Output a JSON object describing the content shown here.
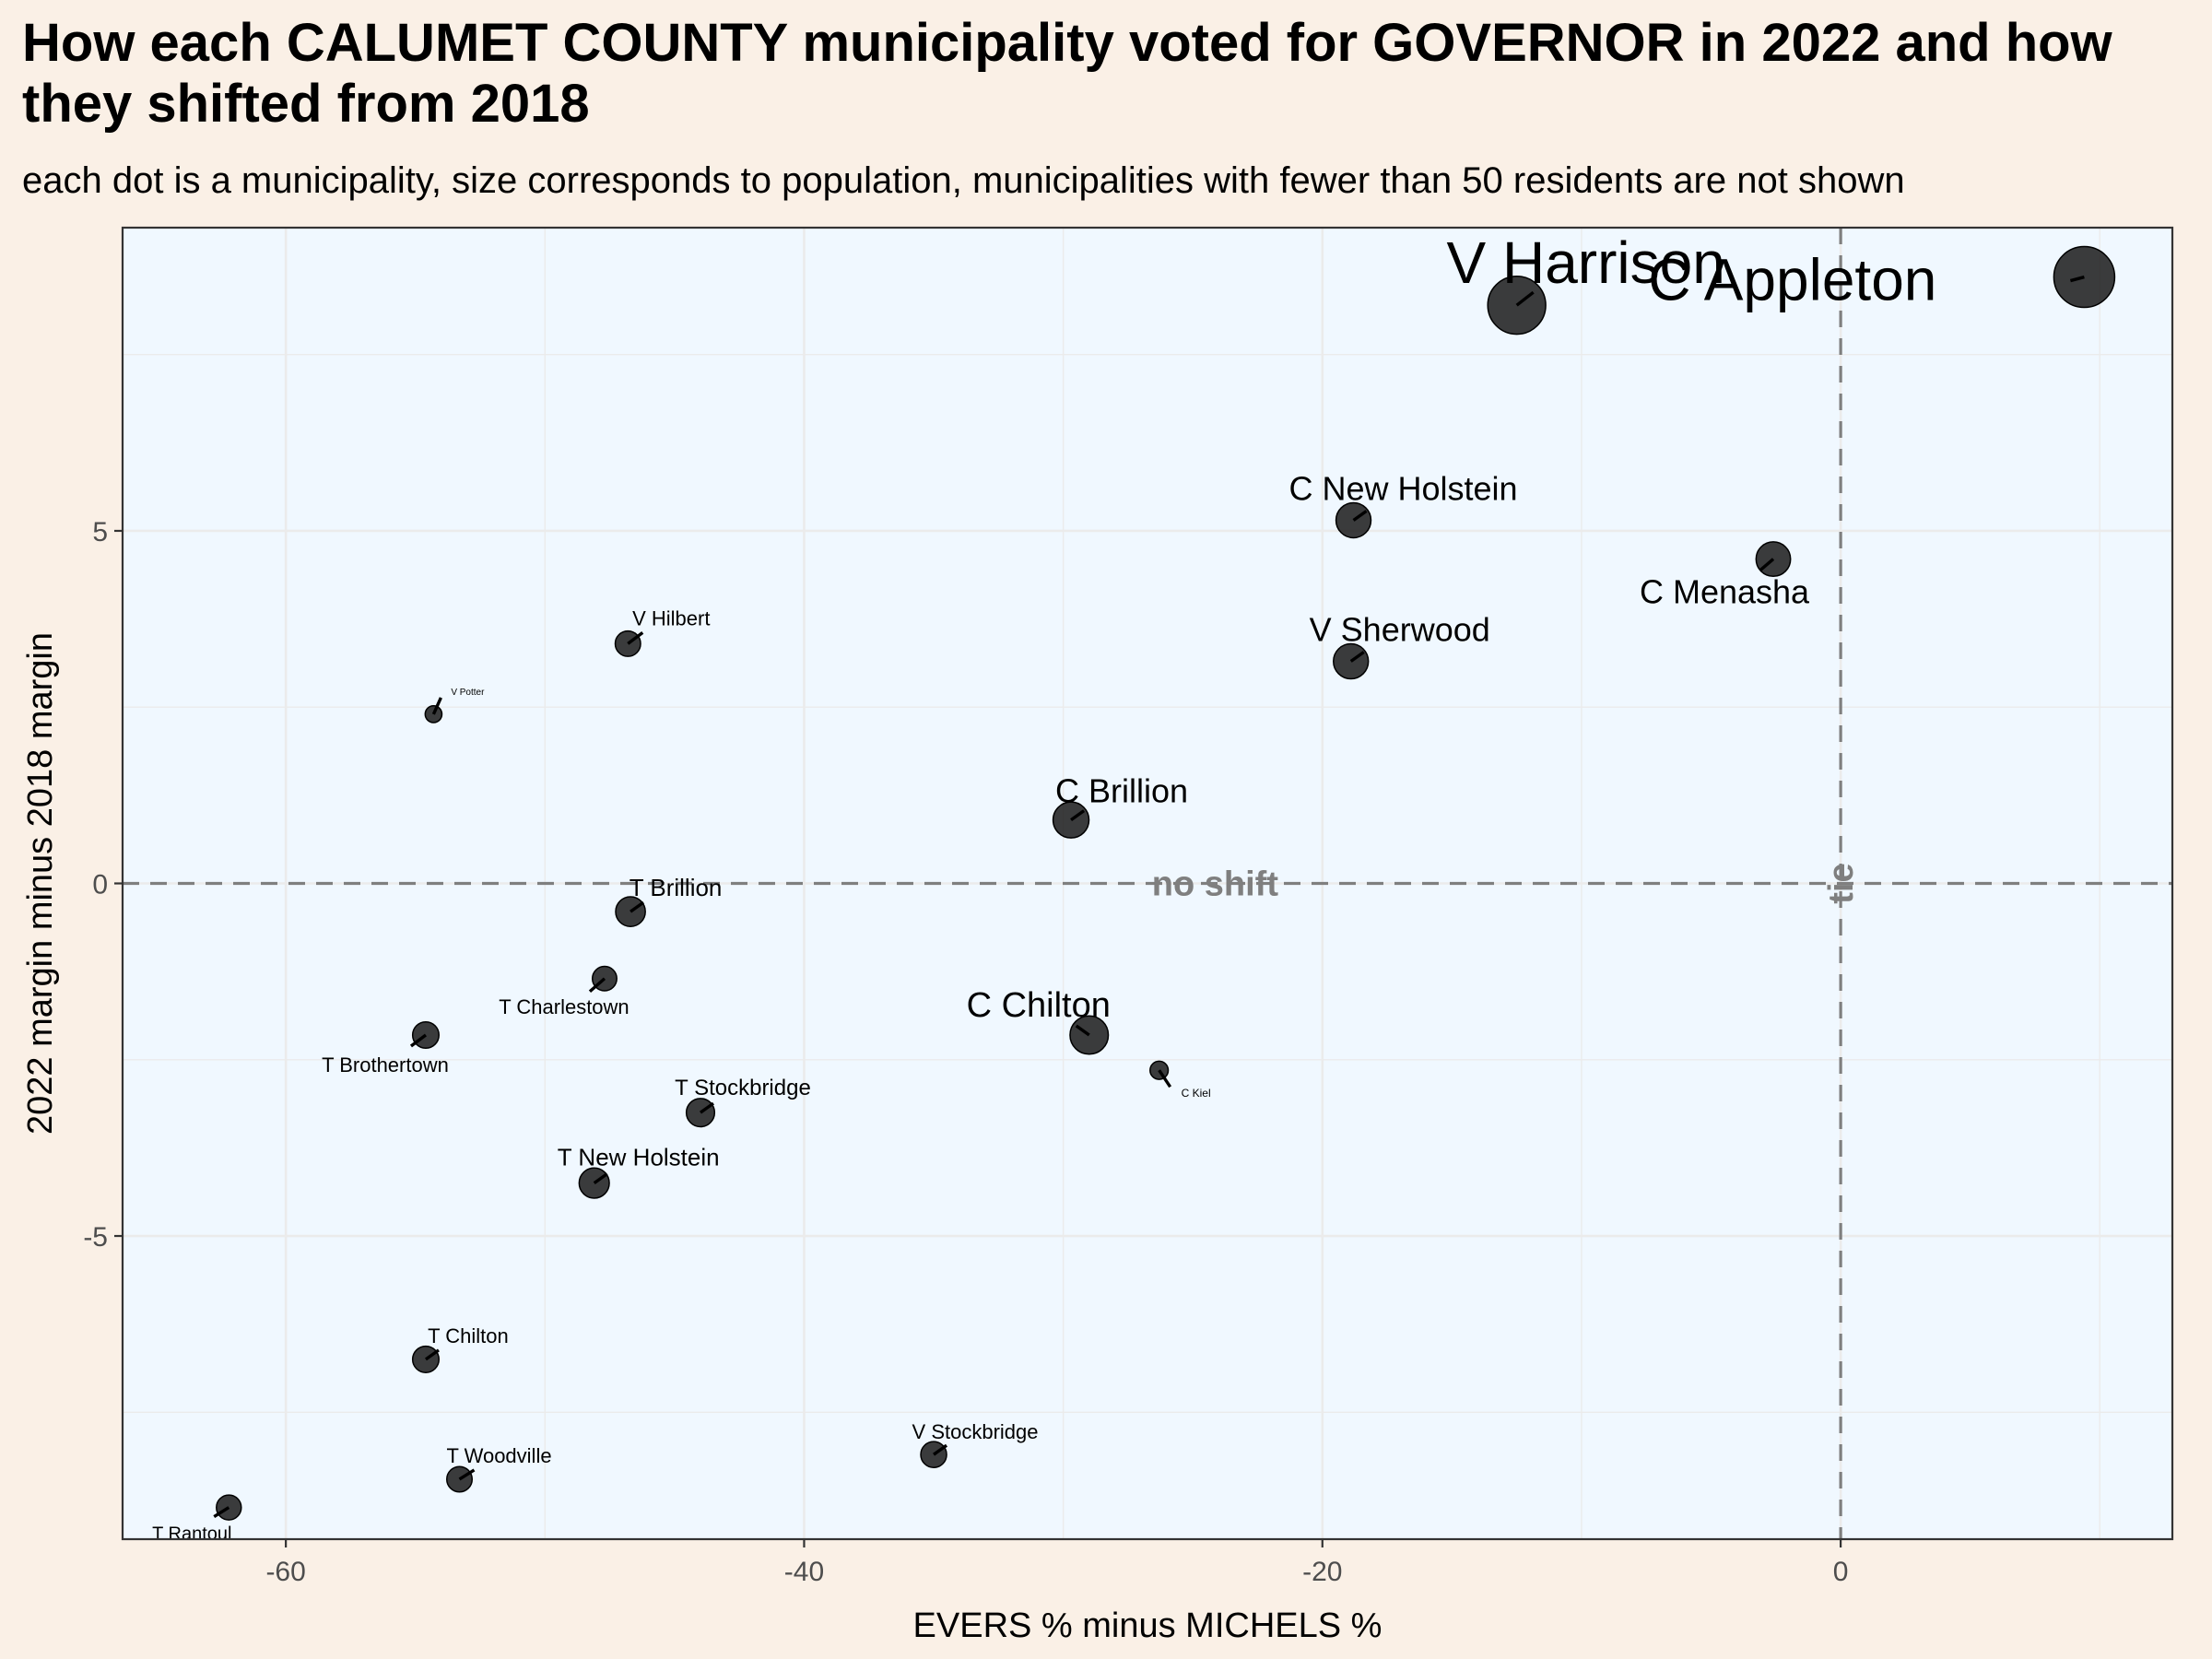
{
  "title": "How each CALUMET COUNTY municipality voted for GOVERNOR in 2022 and how they shifted from 2018",
  "subtitle": "each dot is a municipality, size corresponds to population, municipalities with fewer than 50 residents are not shown",
  "chart_data": {
    "type": "scatter",
    "xlabel": "EVERS % minus MICHELS %",
    "ylabel": "2022 margin minus 2018 margin",
    "xlim": [
      -66.3,
      12.8
    ],
    "ylim": [
      -9.3,
      9.3
    ],
    "x_ticks": [
      -60,
      -40,
      -20,
      0
    ],
    "x_tick_labels": [
      "-60",
      "-40",
      "-20",
      "0"
    ],
    "y_ticks": [
      -5,
      0,
      5
    ],
    "y_tick_labels": [
      "-5",
      "0",
      "5"
    ],
    "grid": true,
    "background": "#F0F8FF",
    "dot_color": "#1A1A1A",
    "reference_lines": [
      {
        "axis": "y",
        "value": 0,
        "label": "no shift"
      },
      {
        "axis": "x",
        "value": 0,
        "label": "tie"
      }
    ],
    "points": [
      {
        "name": "C Appleton",
        "x": 9.4,
        "y": 8.6,
        "size": 10
      },
      {
        "name": "V Harrison",
        "x": -12.5,
        "y": 8.2,
        "size": 9.4
      },
      {
        "name": "C New Holstein",
        "x": -18.8,
        "y": 5.15,
        "size": 4.6
      },
      {
        "name": "C Menasha",
        "x": -2.6,
        "y": 4.6,
        "size": 4.5
      },
      {
        "name": "V Sherwood",
        "x": -18.9,
        "y": 3.15,
        "size": 4.6
      },
      {
        "name": "V Hilbert",
        "x": -46.8,
        "y": 3.4,
        "size": 2.6
      },
      {
        "name": "V Potter",
        "x": -54.3,
        "y": 2.4,
        "size": 0.8
      },
      {
        "name": "C Brillion",
        "x": -29.7,
        "y": 0.9,
        "size": 4.8
      },
      {
        "name": "T Brillion",
        "x": -46.7,
        "y": -0.4,
        "size": 3.5
      },
      {
        "name": "T Charlestown",
        "x": -47.7,
        "y": -1.35,
        "size": 2.4
      },
      {
        "name": "T Brothertown",
        "x": -54.6,
        "y": -2.15,
        "size": 2.8
      },
      {
        "name": "C Chilton",
        "x": -29.0,
        "y": -2.15,
        "size": 5.3
      },
      {
        "name": "C Kiel",
        "x": -26.3,
        "y": -2.65,
        "size": 1.1
      },
      {
        "name": "T Stockbridge",
        "x": -44.0,
        "y": -3.25,
        "size": 3.2
      },
      {
        "name": "T New Holstein",
        "x": -48.1,
        "y": -4.25,
        "size": 3.6
      },
      {
        "name": "T Chilton",
        "x": -54.6,
        "y": -6.75,
        "size": 2.8
      },
      {
        "name": "T Woodville",
        "x": -53.3,
        "y": -8.45,
        "size": 2.6
      },
      {
        "name": "V Stockbridge",
        "x": -35.0,
        "y": -8.1,
        "size": 2.7
      },
      {
        "name": "T Rantoul",
        "x": -62.2,
        "y": -8.85,
        "size": 2.5
      }
    ]
  }
}
